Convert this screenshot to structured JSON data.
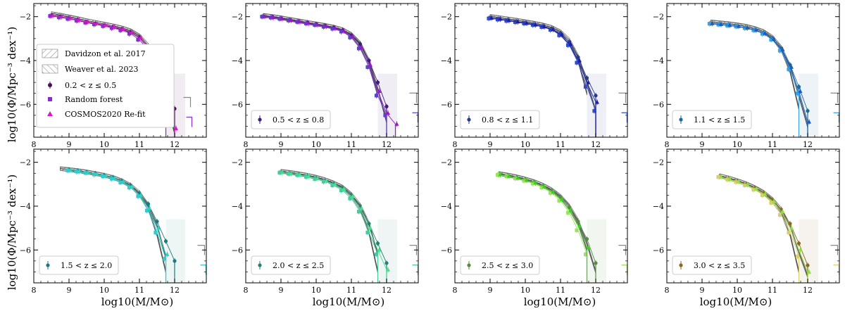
{
  "axes_common": {
    "xlabel": "log10(M/M⊙)",
    "ylabel": "log10(Φ/Mpc⁻³ dex⁻¹)",
    "xlim": [
      8,
      12.9
    ],
    "ylim": [
      -7.5,
      -1.4
    ],
    "xticks": [
      8,
      9,
      10,
      11,
      12
    ],
    "yticks": [
      -2,
      -4,
      -6
    ]
  },
  "legend_panel1": [
    {
      "label": "Davidzon et al. 2017",
      "style": "hatch-forward"
    },
    {
      "label": "Weaver et al. 2023",
      "style": "hatch-back"
    },
    {
      "label": "0.2 < z ≤ 0.5",
      "style": "circle"
    },
    {
      "label": "Random forest",
      "style": "square"
    },
    {
      "label": "COSMOS2020 Re-fit",
      "style": "triangle"
    }
  ],
  "chart_data": [
    {
      "type": "scatter",
      "panel": 1,
      "zbin": "0.2 < z ≤ 0.5",
      "colors": {
        "circle": "#4b0f5a",
        "square": "#8a2bd0",
        "triangle": "#d41bc4"
      },
      "x": [
        8.5,
        8.75,
        9.0,
        9.25,
        9.5,
        9.75,
        10.0,
        10.25,
        10.5,
        10.75,
        11.0,
        11.25,
        11.5,
        11.75,
        12.0,
        12.25
      ],
      "circle": [
        -1.95,
        -2.0,
        -2.08,
        -2.16,
        -2.25,
        -2.32,
        -2.4,
        -2.48,
        -2.58,
        -2.72,
        -2.95,
        -3.35,
        -4.1,
        -5.2,
        -6.2,
        null
      ],
      "square": [
        -1.97,
        -2.03,
        -2.1,
        -2.18,
        -2.27,
        -2.35,
        -2.43,
        -2.52,
        -2.62,
        -2.78,
        -3.05,
        -3.55,
        -4.4,
        -5.5,
        null,
        null
      ],
      "triangle": [
        -1.95,
        -2.0,
        -2.07,
        -2.15,
        -2.23,
        -2.3,
        -2.38,
        -2.46,
        -2.55,
        -2.7,
        -2.95,
        -3.4,
        -4.3,
        -5.4,
        -7.1,
        null
      ],
      "davidzon": [
        -1.9,
        -1.95,
        -2.02,
        -2.1,
        -2.18,
        -2.26,
        -2.34,
        -2.42,
        -2.52,
        -2.66,
        -2.9,
        -3.4,
        -4.5,
        -6.5,
        null,
        null
      ],
      "weaver": [
        -1.85,
        -1.92,
        -2.0,
        -2.08,
        -2.17,
        -2.25,
        -2.33,
        -2.41,
        -2.5,
        -2.63,
        -2.86,
        -3.3,
        -4.2,
        -5.8,
        -7.3,
        null
      ],
      "upper_limit_x": 12.25,
      "upper_limit_y": -6.2
    },
    {
      "type": "scatter",
      "panel": 2,
      "zbin": "0.5 < z ≤ 0.8",
      "colors": {
        "circle": "#3b1f7a",
        "square": "#5a43c8",
        "triangle": "#9a18c4"
      },
      "x": [
        8.5,
        8.75,
        9.0,
        9.25,
        9.5,
        9.75,
        10.0,
        10.25,
        10.5,
        10.75,
        11.0,
        11.25,
        11.5,
        11.75,
        12.0,
        12.25
      ],
      "circle": [
        -1.98,
        -2.02,
        -2.08,
        -2.15,
        -2.22,
        -2.28,
        -2.35,
        -2.42,
        -2.5,
        -2.62,
        -2.85,
        -3.25,
        -4.0,
        -5.0,
        -6.1,
        null
      ],
      "square": [
        -2.0,
        -2.04,
        -2.1,
        -2.17,
        -2.24,
        -2.31,
        -2.38,
        -2.46,
        -2.55,
        -2.68,
        -2.95,
        -3.45,
        -4.3,
        -5.6,
        -6.5,
        null
      ],
      "triangle": [
        -1.99,
        -2.03,
        -2.09,
        -2.16,
        -2.23,
        -2.3,
        -2.37,
        -2.44,
        -2.53,
        -2.65,
        -2.9,
        -3.4,
        -4.2,
        -5.4,
        -6.4,
        -6.9
      ],
      "davidzon": [
        -1.95,
        -2.0,
        -2.06,
        -2.13,
        -2.2,
        -2.27,
        -2.34,
        -2.41,
        -2.49,
        -2.6,
        -2.82,
        -3.25,
        -4.1,
        -5.6,
        null,
        null
      ],
      "weaver": [
        -1.93,
        -1.98,
        -2.04,
        -2.11,
        -2.18,
        -2.25,
        -2.32,
        -2.39,
        -2.47,
        -2.58,
        -2.8,
        -3.2,
        -4.0,
        -5.3,
        -6.8,
        null
      ],
      "upper_limit_x": 12.65,
      "upper_limit_y": -6.0
    },
    {
      "type": "scatter",
      "panel": 3,
      "zbin": "0.8 < z ≤ 1.1",
      "colors": {
        "circle": "#283a8a",
        "square": "#2f4bd0",
        "triangle": "#1d1da8"
      },
      "x": [
        9.0,
        9.25,
        9.5,
        9.75,
        10.0,
        10.25,
        10.5,
        10.75,
        11.0,
        11.25,
        11.5,
        11.75,
        12.0,
        12.25
      ],
      "circle": [
        -2.05,
        -2.1,
        -2.16,
        -2.22,
        -2.28,
        -2.35,
        -2.43,
        -2.55,
        -2.78,
        -3.15,
        -3.85,
        -4.8,
        -5.6,
        null
      ],
      "square": [
        -2.08,
        -2.13,
        -2.19,
        -2.25,
        -2.31,
        -2.38,
        -2.47,
        -2.6,
        -2.85,
        -3.3,
        -4.1,
        -5.2,
        -6.3,
        null
      ],
      "triangle": [
        -2.06,
        -2.11,
        -2.17,
        -2.23,
        -2.3,
        -2.37,
        -2.46,
        -2.58,
        -2.82,
        -3.25,
        -4.0,
        -5.0,
        -5.9,
        null
      ],
      "davidzon": [
        -2.0,
        -2.05,
        -2.11,
        -2.17,
        -2.24,
        -2.31,
        -2.39,
        -2.5,
        -2.72,
        -3.15,
        -4.0,
        -5.5,
        null,
        null
      ],
      "weaver": [
        -1.98,
        -2.03,
        -2.09,
        -2.15,
        -2.22,
        -2.29,
        -2.37,
        -2.48,
        -2.68,
        -3.05,
        -3.8,
        -5.0,
        -6.3,
        null
      ],
      "upper_limit_x": 12.65,
      "upper_limit_y": -6.0
    },
    {
      "type": "scatter",
      "panel": 4,
      "zbin": "1.1 < z ≤ 1.5",
      "colors": {
        "circle": "#1d6a9a",
        "square": "#3aa0e0",
        "triangle": "#1a5cc0"
      },
      "x": [
        9.25,
        9.5,
        9.75,
        10.0,
        10.25,
        10.5,
        10.75,
        11.0,
        11.25,
        11.5,
        11.75,
        12.0,
        12.25
      ],
      "circle": [
        -2.3,
        -2.34,
        -2.38,
        -2.43,
        -2.5,
        -2.6,
        -2.75,
        -3.0,
        -3.45,
        -4.2,
        -5.2,
        -6.3,
        null
      ],
      "square": [
        -2.32,
        -2.36,
        -2.4,
        -2.45,
        -2.52,
        -2.62,
        -2.78,
        -3.05,
        -3.55,
        -4.4,
        -5.5,
        null,
        null
      ],
      "triangle": [
        -2.31,
        -2.35,
        -2.39,
        -2.44,
        -2.51,
        -2.61,
        -2.76,
        -3.02,
        -3.5,
        -4.3,
        -5.4,
        -6.8,
        null
      ],
      "davidzon": [
        -2.25,
        -2.29,
        -2.33,
        -2.38,
        -2.45,
        -2.55,
        -2.7,
        -2.98,
        -3.5,
        -4.5,
        -6.2,
        null,
        null
      ],
      "weaver": [
        -2.23,
        -2.27,
        -2.31,
        -2.36,
        -2.43,
        -2.53,
        -2.67,
        -2.93,
        -3.4,
        -4.25,
        -5.6,
        -7.0,
        null
      ],
      "upper_limit_x": 12.65,
      "upper_limit_y": -6.0
    },
    {
      "type": "scatter",
      "panel": 5,
      "zbin": "1.5 < z ≤ 2.0",
      "colors": {
        "circle": "#1f7a80",
        "square": "#33c9d0",
        "triangle": "#2fd0c0"
      },
      "x": [
        8.5,
        8.75,
        9.0,
        9.25,
        9.5,
        9.75,
        10.0,
        10.25,
        10.5,
        10.75,
        11.0,
        11.25,
        11.5,
        11.75,
        12.0,
        12.25
      ],
      "circle": [
        null,
        null,
        -2.35,
        -2.4,
        -2.46,
        -2.52,
        -2.6,
        -2.7,
        -2.85,
        -3.05,
        -3.4,
        -3.9,
        -4.7,
        -5.6,
        -6.5,
        null
      ],
      "square": [
        null,
        null,
        -2.37,
        -2.42,
        -2.48,
        -2.55,
        -2.64,
        -2.75,
        -2.92,
        -3.15,
        -3.55,
        -4.2,
        -5.2,
        -6.4,
        null,
        null
      ],
      "triangle": [
        null,
        null,
        -2.36,
        -2.41,
        -2.47,
        -2.53,
        -2.62,
        -2.72,
        -2.88,
        -3.1,
        -3.5,
        -4.1,
        -5.0,
        -6.2,
        null,
        null
      ],
      "davidzon": [
        null,
        -2.3,
        -2.34,
        -2.39,
        -2.45,
        -2.52,
        -2.6,
        -2.7,
        -2.86,
        -3.08,
        -3.45,
        -4.1,
        -5.3,
        -7.0,
        null,
        null
      ],
      "weaver": [
        null,
        -2.28,
        -2.32,
        -2.37,
        -2.43,
        -2.5,
        -2.58,
        -2.68,
        -2.83,
        -3.04,
        -3.38,
        -3.95,
        -4.9,
        -6.3,
        null,
        null
      ],
      "upper_limit_x": 12.65,
      "upper_limit_y": -6.3
    },
    {
      "type": "scatter",
      "panel": 6,
      "zbin": "2.0 < z ≤ 2.5",
      "colors": {
        "circle": "#2a8070",
        "square": "#48c9a0",
        "triangle": "#44e090"
      },
      "x": [
        9.0,
        9.25,
        9.5,
        9.75,
        10.0,
        10.25,
        10.5,
        10.75,
        11.0,
        11.25,
        11.5,
        11.75,
        12.0,
        12.25
      ],
      "circle": [
        -2.45,
        -2.5,
        -2.56,
        -2.63,
        -2.72,
        -2.83,
        -2.98,
        -3.18,
        -3.5,
        -4.0,
        -4.8,
        -5.7,
        -6.6,
        null
      ],
      "square": [
        -2.47,
        -2.52,
        -2.58,
        -2.66,
        -2.76,
        -2.88,
        -3.05,
        -3.28,
        -3.65,
        -4.25,
        -5.2,
        -6.2,
        null,
        null
      ],
      "triangle": [
        -2.46,
        -2.51,
        -2.57,
        -2.64,
        -2.74,
        -2.85,
        -3.01,
        -3.22,
        -3.55,
        -4.1,
        -5.0,
        -6.0,
        -6.9,
        null
      ],
      "davidzon": [
        -2.42,
        -2.47,
        -2.53,
        -2.6,
        -2.69,
        -2.8,
        -2.95,
        -3.15,
        -3.5,
        -4.1,
        -5.2,
        -7.0,
        null,
        null
      ],
      "weaver": [
        -2.4,
        -2.45,
        -2.51,
        -2.58,
        -2.67,
        -2.78,
        -2.93,
        -3.12,
        -3.45,
        -3.95,
        -4.8,
        -6.2,
        null,
        null
      ],
      "upper_limit_x": 12.65,
      "upper_limit_y": -6.3
    },
    {
      "type": "scatter",
      "panel": 7,
      "zbin": "2.5 < z ≤ 3.0",
      "colors": {
        "circle": "#5a8a40",
        "square": "#a0e060",
        "triangle": "#38d020"
      },
      "x": [
        9.25,
        9.5,
        9.75,
        10.0,
        10.25,
        10.5,
        10.75,
        11.0,
        11.25,
        11.5,
        11.75,
        12.0,
        12.25
      ],
      "circle": [
        -2.55,
        -2.62,
        -2.7,
        -2.8,
        -2.92,
        -3.08,
        -3.3,
        -3.6,
        -4.05,
        -4.7,
        -5.5,
        -6.6,
        null
      ],
      "square": [
        -2.57,
        -2.64,
        -2.73,
        -2.84,
        -2.97,
        -3.15,
        -3.4,
        -3.75,
        -4.3,
        -5.1,
        -6.2,
        null,
        null
      ],
      "triangle": [
        -2.56,
        -2.63,
        -2.71,
        -2.82,
        -2.94,
        -3.11,
        -3.35,
        -3.68,
        -4.2,
        -4.9,
        -5.9,
        null,
        null
      ],
      "davidzon": [
        -2.52,
        -2.59,
        -2.67,
        -2.77,
        -2.89,
        -3.05,
        -3.27,
        -3.58,
        -4.05,
        -4.8,
        -6.0,
        null,
        null
      ],
      "weaver": [
        -2.5,
        -2.57,
        -2.65,
        -2.75,
        -2.87,
        -3.03,
        -3.24,
        -3.54,
        -3.98,
        -4.65,
        -5.7,
        -7.0,
        null
      ],
      "upper_limit_x": 12.65,
      "upper_limit_y": -6.3
    },
    {
      "type": "scatter",
      "panel": 8,
      "zbin": "3.0 < z ≤ 3.5",
      "colors": {
        "circle": "#8a6a20",
        "square": "#d8d070",
        "triangle": "#90e040"
      },
      "x": [
        9.5,
        9.75,
        10.0,
        10.25,
        10.5,
        10.75,
        11.0,
        11.25,
        11.5,
        11.75,
        12.0,
        12.25
      ],
      "circle": [
        -2.65,
        -2.75,
        -2.86,
        -3.0,
        -3.18,
        -3.4,
        -3.72,
        -4.15,
        -4.8,
        -5.7,
        -6.7,
        null
      ],
      "square": [
        -2.67,
        -2.78,
        -2.9,
        -3.05,
        -3.25,
        -3.5,
        -3.85,
        -4.4,
        -5.2,
        -6.3,
        null,
        null
      ],
      "triangle": [
        -2.66,
        -2.77,
        -2.88,
        -3.02,
        -3.21,
        -3.45,
        -3.78,
        -4.25,
        -5.0,
        -6.0,
        -7.0,
        null
      ],
      "davidzon": [
        -2.62,
        -2.72,
        -2.84,
        -2.98,
        -3.16,
        -3.4,
        -3.75,
        -4.3,
        -5.3,
        -7.0,
        null,
        null
      ],
      "weaver": [
        -2.6,
        -2.7,
        -2.82,
        -2.96,
        -3.14,
        -3.36,
        -3.68,
        -4.15,
        -4.9,
        -6.1,
        -7.2,
        null
      ],
      "upper_limit_x": 12.65,
      "upper_limit_y": -6.3
    }
  ]
}
